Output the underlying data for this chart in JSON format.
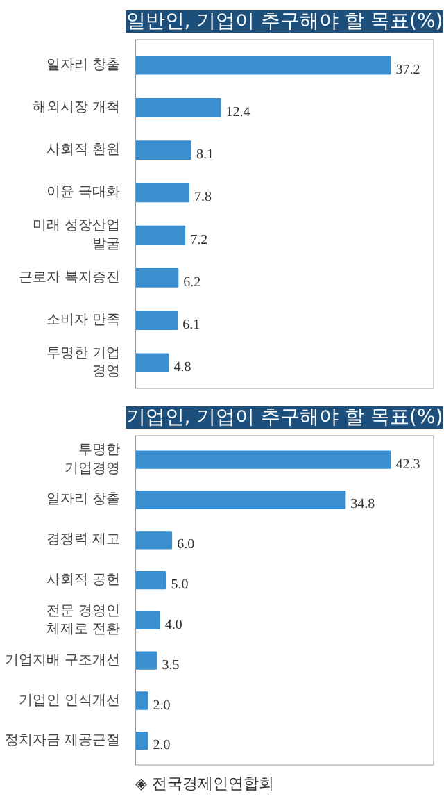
{
  "chart_data": [
    {
      "type": "bar",
      "orientation": "horizontal",
      "title": "일반인, 기업이 추구해야 할 목표(%)",
      "categories": [
        "일자리 창출",
        "해외시장 개척",
        "사회적 환원",
        "이윤 극대화",
        "미래 성장산업\n발굴",
        "근로자 복지증진",
        "소비자 만족",
        "투명한 기업\n경영"
      ],
      "values": [
        37.2,
        12.4,
        8.1,
        7.8,
        7.2,
        6.2,
        6.1,
        4.8
      ],
      "color": "#3a8fd0",
      "value_labels": [
        "37.2",
        "12.4",
        "8.1",
        "7.8",
        "7.2",
        "6.2",
        "6.1",
        "4.8"
      ],
      "tick_labels": "y"
    },
    {
      "type": "bar",
      "orientation": "horizontal",
      "title": "기업인, 기업이 추구해야 할 목표(%)",
      "categories": [
        "투명한\n기업경영",
        "일자리 창출",
        "경쟁력 제고",
        "사회적 공헌",
        "전문 경영인\n체제로 전환",
        "기업지배 구조개선",
        "기업인 인식개선",
        "정치자금 제공근절"
      ],
      "values": [
        42.3,
        34.8,
        6.0,
        5.0,
        4.0,
        3.5,
        2.0,
        2.0
      ],
      "color": "#3a8fd0",
      "value_labels": [
        "42.3",
        "34.8",
        "6.0",
        "5.0",
        "4.0",
        "3.5",
        "2.0",
        "2.0"
      ],
      "tick_labels": "y",
      "annotations": [
        "◈ 전국경제인연합회"
      ]
    }
  ]
}
